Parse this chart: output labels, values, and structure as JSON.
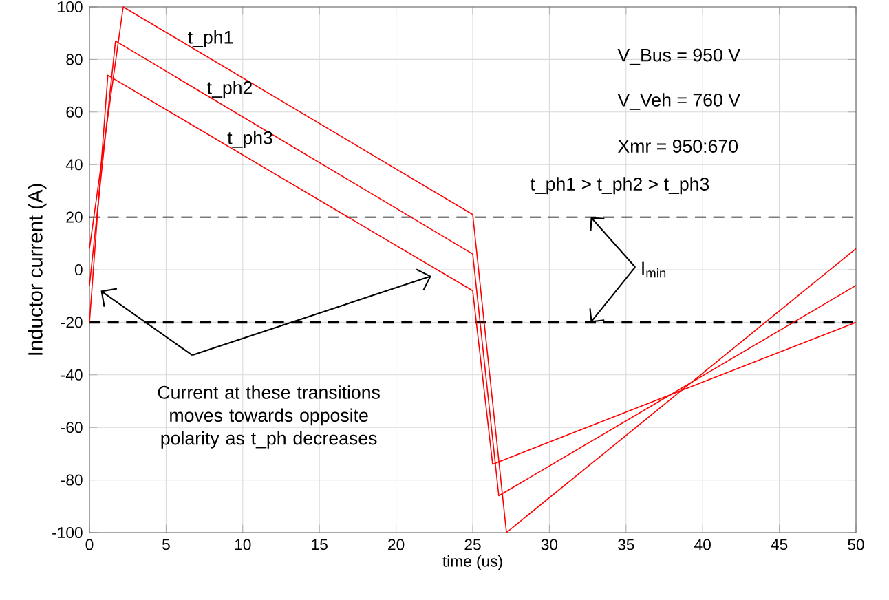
{
  "chart_data": {
    "type": "line",
    "xlabel": "time (us)",
    "ylabel": "Inductor current (A)",
    "xlim": [
      0,
      50
    ],
    "ylim": [
      -100,
      100
    ],
    "xticks": [
      0,
      5,
      10,
      15,
      20,
      25,
      30,
      35,
      40,
      45,
      50
    ],
    "yticks": [
      -100,
      -80,
      -60,
      -40,
      -20,
      0,
      20,
      40,
      60,
      80,
      100
    ],
    "grid": true,
    "line_style": "solid",
    "marker": "none",
    "series": [
      {
        "name": "t_ph1",
        "color": "#ff0000",
        "x": [
          0,
          2.2,
          25,
          27.2,
          50
        ],
        "values": [
          8,
          100,
          21,
          -100,
          8
        ]
      },
      {
        "name": "t_ph2",
        "color": "#ff0000",
        "x": [
          0,
          1.7,
          25,
          26.7,
          50
        ],
        "values": [
          -6,
          87,
          6,
          -86,
          -6
        ]
      },
      {
        "name": "t_ph3",
        "color": "#ff0000",
        "x": [
          0,
          1.2,
          25,
          26.3,
          50
        ],
        "values": [
          -20,
          74,
          -8,
          -74,
          -20
        ]
      }
    ],
    "ref_lines": [
      {
        "axis": "y",
        "value": 20,
        "color": "#000000",
        "line_style": "dashed"
      },
      {
        "axis": "y",
        "value": -20,
        "color": "#000000",
        "line_style": "dashed"
      }
    ],
    "annotations": [
      "V_Bus = 950 V",
      "V_Veh = 760 V",
      "Xmr = 950:670",
      "t_ph1 > t_ph2 > t_ph3",
      {
        "text": "I$_{min}$",
        "x": 32.7,
        "y": -20
      },
      "Current at these transitions moves towards opposite polarity as t_ph decreases"
    ]
  }
}
